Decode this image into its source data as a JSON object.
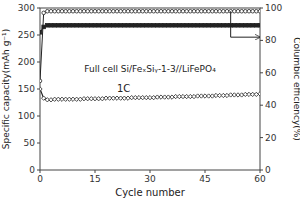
{
  "chart_data": {
    "type": "line",
    "x_label": "Cycle number",
    "y_label": "Specific capacity(mAh g⁻¹)",
    "y2_label": "Columbic efficiency(%)",
    "annotations": [
      {
        "text": "Full cell Si/FeₓSiᵧ-1-3//LiFePO₄"
      },
      {
        "text": "1C"
      },
      {
        "x": [
          52,
          52,
          60
        ],
        "y": [
          98,
          82,
          82
        ],
        "axis": "y2"
      }
    ],
    "x": [
      0,
      1,
      2,
      3,
      4,
      5,
      6,
      7,
      8,
      9,
      10,
      11,
      12,
      13,
      14,
      15,
      16,
      17,
      18,
      19,
      20,
      21,
      22,
      23,
      24,
      25,
      26,
      27,
      28,
      29,
      30,
      31,
      32,
      33,
      34,
      35,
      36,
      37,
      38,
      39,
      40,
      41,
      42,
      43,
      44,
      45,
      46,
      47,
      48,
      49,
      50,
      51,
      52,
      53,
      54,
      55,
      56,
      57,
      58,
      59,
      60
    ],
    "series": [
      {
        "color": "#222222",
        "marker": "square",
        "values": [
          255,
          265,
          268,
          268,
          268,
          268,
          268,
          268,
          268,
          268,
          268,
          268,
          268,
          268,
          268,
          268,
          268,
          268,
          268,
          268,
          268,
          268,
          268,
          268,
          268,
          268,
          268,
          268,
          268,
          268,
          268,
          268,
          268,
          268,
          268,
          268,
          268,
          268,
          268,
          268,
          268,
          268,
          268,
          268,
          268,
          268,
          268,
          268,
          268,
          268,
          268,
          268,
          268,
          268,
          268,
          268,
          268,
          268,
          268,
          268,
          268
        ]
      },
      {
        "color": "#222222",
        "marker": "open-diamond",
        "values": [
          150,
          133,
          130,
          130,
          131,
          131,
          131,
          131,
          131,
          131,
          131,
          131,
          132,
          132,
          132,
          132,
          132,
          132,
          133,
          133,
          133,
          133,
          133,
          133,
          133,
          134,
          134,
          134,
          134,
          134,
          134,
          134,
          135,
          135,
          135,
          135,
          135,
          136,
          136,
          136,
          136,
          136,
          136,
          137,
          137,
          137,
          137,
          137,
          138,
          138,
          138,
          138,
          139,
          139,
          139,
          139,
          140,
          140,
          140,
          140,
          141
        ]
      },
      {
        "color": "#222222",
        "marker": "open-circle",
        "axis": "y2",
        "values": [
          55,
          97,
          98,
          98,
          98,
          98,
          98,
          98,
          98,
          98,
          98,
          98,
          98,
          98,
          98,
          98,
          98,
          98,
          98,
          98,
          98,
          98,
          98,
          98,
          98,
          98,
          98,
          98,
          98,
          98,
          98,
          98,
          98,
          98,
          98,
          98,
          98,
          98,
          98,
          98,
          98,
          98,
          98,
          98,
          98,
          98,
          98,
          98,
          98,
          98,
          98,
          98,
          98,
          98,
          98,
          98,
          98,
          98,
          98,
          98,
          98
        ]
      }
    ],
    "xlim": [
      0,
      60
    ],
    "xticks": [
      0,
      15,
      30,
      45,
      60
    ],
    "ylim": [
      0,
      300
    ],
    "yticks": [
      0,
      50,
      100,
      150,
      200,
      250,
      300
    ],
    "y2lim": [
      0,
      100
    ],
    "y2ticks": [
      0,
      20,
      40,
      60,
      80,
      100
    ],
    "grid": false
  }
}
